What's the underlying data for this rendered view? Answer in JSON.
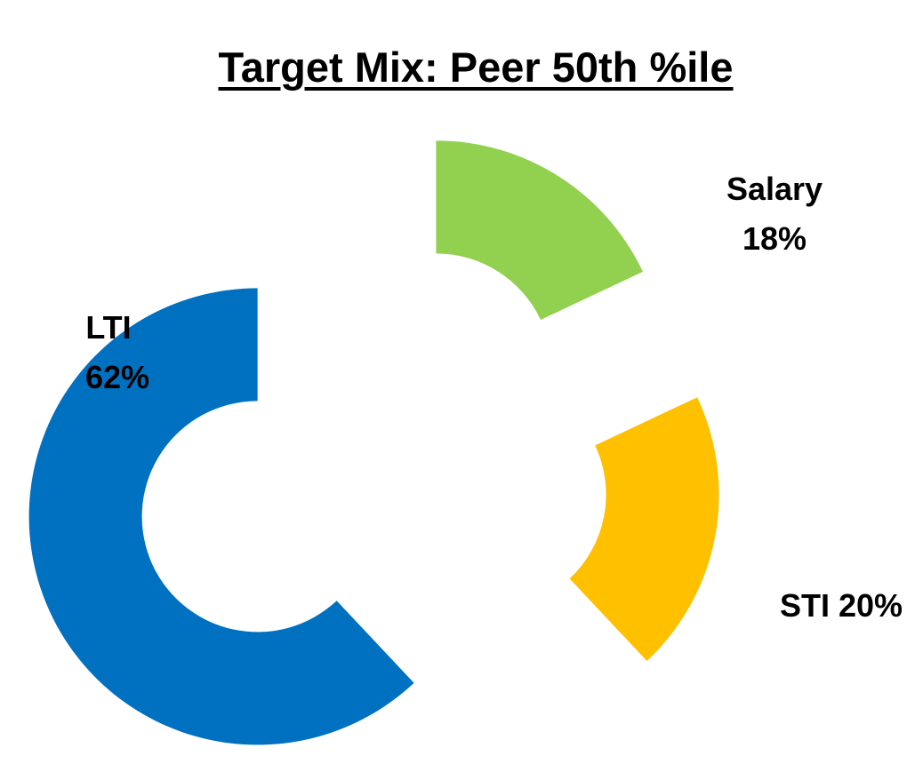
{
  "chart_data": {
    "type": "pie",
    "title": "Target Mix: Peer 50th %ile",
    "variant": "exploded-donut",
    "slices": [
      {
        "name": "Salary",
        "value": 18,
        "pct_label": "18%",
        "color": "#92D050"
      },
      {
        "name": "STI",
        "value": 20,
        "pct_label": "20%",
        "color": "#FFC000"
      },
      {
        "name": "LTI",
        "value": 62,
        "pct_label": "62%",
        "color": "#0070C0"
      }
    ]
  }
}
